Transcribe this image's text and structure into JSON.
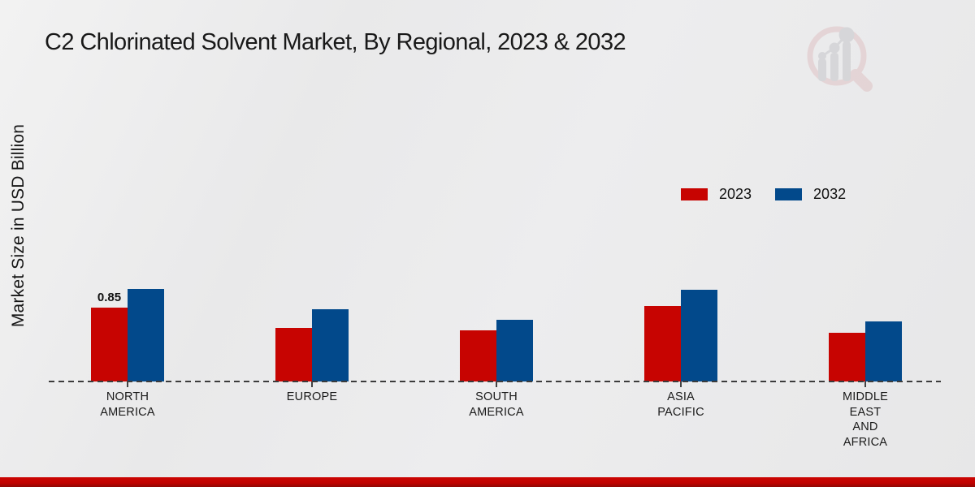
{
  "title": "C2 Chlorinated Solvent Market, By Regional, 2023 & 2032",
  "y_axis_label": "Market Size in USD Billion",
  "legend": {
    "position": "right-middle",
    "items": [
      "2023",
      "2032"
    ]
  },
  "colors": {
    "series_2023": "#c70401",
    "series_2032": "#02498b",
    "footer_stripe": "#c00200",
    "baseline": "#3c3c3c",
    "background": "#eaeaeb"
  },
  "watermark": "market-research-chart-logo",
  "chart_data": {
    "type": "bar",
    "categories": [
      "NORTH\nAMERICA",
      "EUROPE",
      "SOUTH\nAMERICA",
      "ASIA\nPACIFIC",
      "MIDDLE\nEAST\nAND\nAFRICA"
    ],
    "series": [
      {
        "name": "2023",
        "color": "#c70401",
        "values": [
          0.85,
          0.61,
          0.59,
          0.86,
          0.56
        ]
      },
      {
        "name": "2032",
        "color": "#02498b",
        "values": [
          1.06,
          0.83,
          0.71,
          1.05,
          0.69
        ]
      }
    ],
    "annotations": [
      {
        "category_index": 0,
        "series_index": 0,
        "text": "0.85"
      }
    ],
    "title": "C2 Chlorinated Solvent Market, By Regional, 2023 & 2032",
    "xlabel": "",
    "ylabel": "Market Size in USD Billion",
    "ylim": [
      0,
      1.2
    ],
    "grid": false,
    "baseline_style": "dashed",
    "legend_position": "right-middle"
  }
}
